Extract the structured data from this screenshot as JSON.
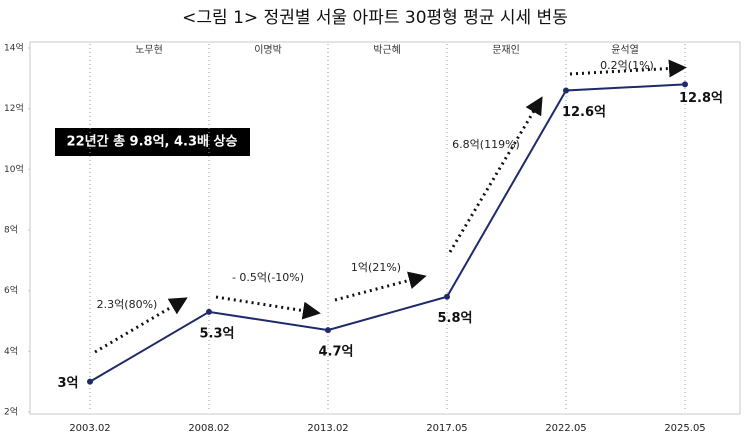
{
  "chart_data": {
    "type": "line",
    "title": "<그림 1> 정권별 서울 아파트 30평형 평균 시세 변동",
    "categories": [
      "2003.02",
      "2008.02",
      "2013.02",
      "2017.05",
      "2022.05",
      "2025.05"
    ],
    "values": [
      3,
      5.3,
      4.7,
      5.8,
      12.6,
      12.8
    ],
    "value_labels": [
      "3억",
      "5.3억",
      "4.7억",
      "5.8억",
      "12.6억",
      "12.8억"
    ],
    "color": "#1f2a6b",
    "ylim": [
      2,
      14
    ],
    "yticks": [
      {
        "value": 2,
        "label": "2억"
      },
      {
        "value": 4,
        "label": "4억"
      },
      {
        "value": 6,
        "label": "6억"
      },
      {
        "value": 8,
        "label": "8억"
      },
      {
        "value": 10,
        "label": "10억"
      },
      {
        "value": 12,
        "label": "12억"
      },
      {
        "value": 14,
        "label": "14억"
      }
    ],
    "periods": [
      "노무현",
      "이명박",
      "박근혜",
      "문재인",
      "윤석열"
    ],
    "annotations": [
      "2.3억(80%)",
      "- 0.5억(-10%)",
      "1억(21%)",
      "6.8억(119%)",
      "0.2억(1%)"
    ],
    "callout": "22년간 총 9.8억, 4.3배 상승"
  }
}
